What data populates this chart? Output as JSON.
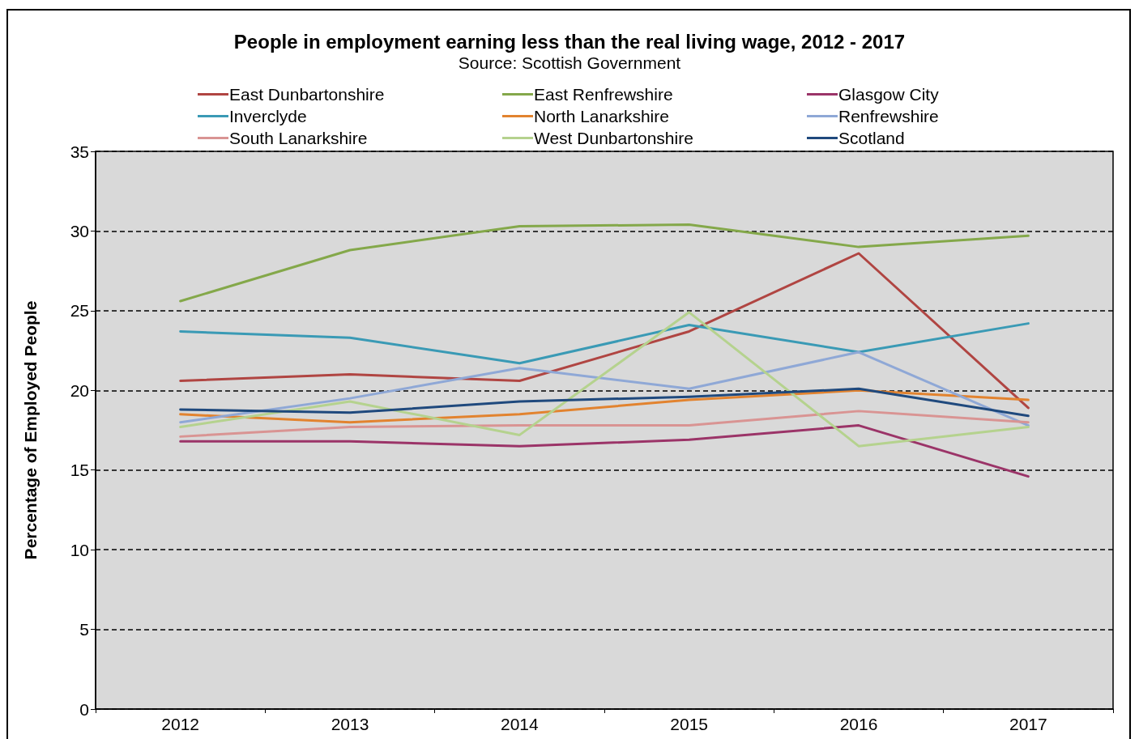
{
  "chart_data": {
    "type": "line",
    "title": "People in employment earning less than the real living wage, 2012 - 2017",
    "subtitle": "Source: Scottish Government",
    "ylabel": "Percentage of Employed People",
    "categories": [
      "2012",
      "2013",
      "2014",
      "2015",
      "2016",
      "2017"
    ],
    "ylim": [
      0,
      35
    ],
    "yticks": [
      0,
      5,
      10,
      15,
      20,
      25,
      30,
      35
    ],
    "grid": "y",
    "legend": "top",
    "marker": "none",
    "line_style": "solid",
    "series": [
      {
        "name": "East Dunbartonshire",
        "color": "#b04542",
        "values": [
          20.6,
          21.0,
          20.6,
          23.7,
          28.6,
          18.9
        ]
      },
      {
        "name": "East Renfrewshire",
        "color": "#84a84a",
        "values": [
          25.6,
          28.8,
          30.3,
          30.4,
          29.0,
          29.7
        ]
      },
      {
        "name": "Glasgow City",
        "color": "#9b3468",
        "values": [
          16.8,
          16.8,
          16.5,
          16.9,
          17.8,
          14.6
        ]
      },
      {
        "name": "Inverclyde",
        "color": "#3a9ab5",
        "values": [
          23.7,
          23.3,
          21.7,
          24.1,
          22.4,
          24.2
        ]
      },
      {
        "name": "North Lanarkshire",
        "color": "#e2832f",
        "values": [
          18.5,
          18.0,
          18.5,
          19.4,
          20.0,
          19.4
        ]
      },
      {
        "name": "Renfrewshire",
        "color": "#8fa8d6",
        "values": [
          18.0,
          19.5,
          21.4,
          20.1,
          22.4,
          17.8
        ]
      },
      {
        "name": "South Lanarkshire",
        "color": "#d99493",
        "values": [
          17.1,
          17.7,
          17.8,
          17.8,
          18.7,
          18.0
        ]
      },
      {
        "name": "West Dunbartonshire",
        "color": "#b5d28e",
        "values": [
          17.7,
          19.3,
          17.2,
          24.9,
          16.5,
          17.7
        ]
      },
      {
        "name": "Scotland",
        "color": "#1f497d",
        "values": [
          18.8,
          18.6,
          19.3,
          19.6,
          20.1,
          18.4
        ]
      }
    ]
  }
}
